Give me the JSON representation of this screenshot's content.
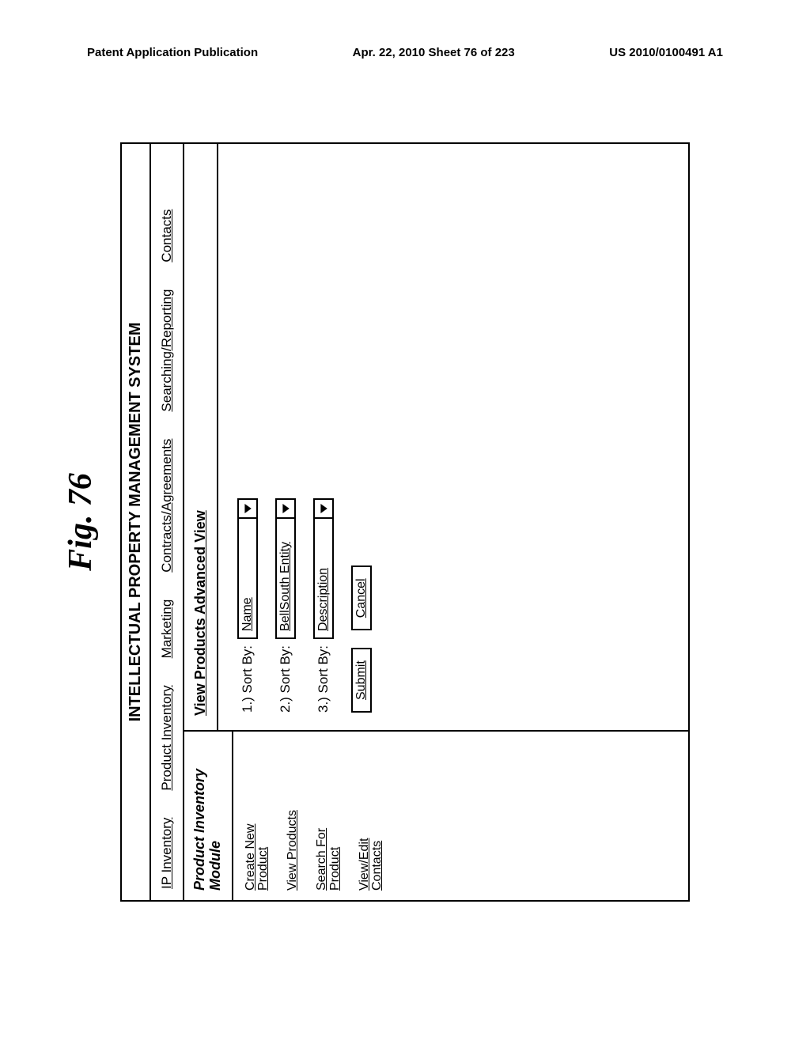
{
  "header": {
    "left": "Patent Application Publication",
    "center": "Apr. 22, 2010  Sheet 76 of 223",
    "right": "US 2010/0100491 A1"
  },
  "figure_label": "Fig. 76",
  "ui": {
    "title": "INTELLECTUAL PROPERTY MANAGEMENT SYSTEM",
    "nav": [
      "IP Inventory",
      "Product Inventory",
      "Marketing",
      "Contracts/Agreements",
      "Searching/Reporting",
      "Contacts"
    ],
    "sidebar": {
      "title_line1": "Product Inventory",
      "title_line2": "Module",
      "links": [
        "Create New\nProduct",
        "View Products",
        "Search For\nProduct",
        "View/Edit\nContacts"
      ]
    },
    "main": {
      "heading": "View Products Advanced View",
      "rows": [
        {
          "label": "1.) Sort By:",
          "value": "Name"
        },
        {
          "label": "2.) Sort By:",
          "value": "BellSouth Entity"
        },
        {
          "label": "3.) Sort By:",
          "value": "Description"
        }
      ],
      "buttons": {
        "submit": "Submit",
        "cancel": "Cancel"
      }
    }
  }
}
